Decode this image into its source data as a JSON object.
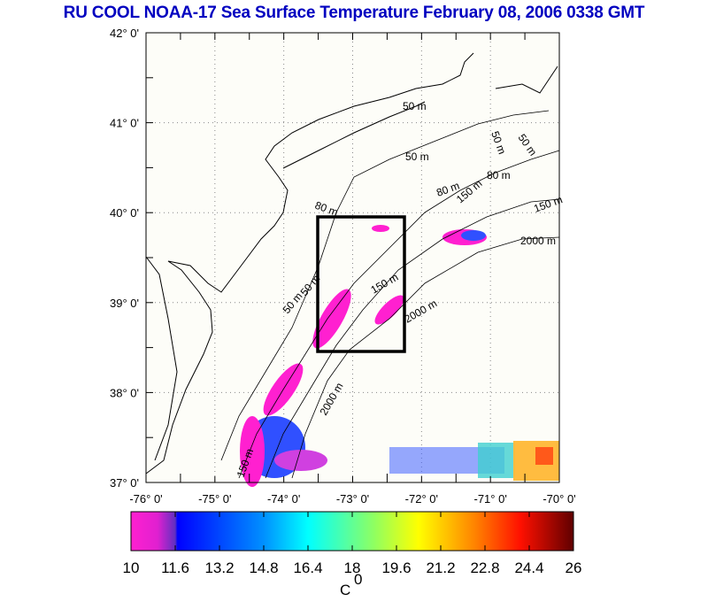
{
  "title": "RU COOL  NOAA-17 Sea Surface Temperature February 08, 2006 0338 GMT",
  "map": {
    "lon_range": [
      -76,
      -70
    ],
    "lat_range": [
      37,
      42
    ],
    "lon_labels": [
      "-76° 0'",
      "-75° 0'",
      "-74° 0'",
      "-73° 0'",
      "-72° 0'",
      "-71° 0'",
      "-70° 0'"
    ],
    "lat_labels": [
      "42° 0'",
      "41° 0'",
      "40° 0'",
      "39° 0'",
      "38° 0'",
      "37° 0'"
    ],
    "study_box": {
      "lon": [
        -73.5,
        -72.25
      ],
      "lat": [
        38.5,
        40
      ]
    },
    "contour_labels": [
      "50 m",
      "50 m",
      "50 m",
      "50 m",
      "50 m",
      "50 m",
      "80 m",
      "80 m",
      "80 m",
      "150 m",
      "150 m",
      "150 m",
      "150 m",
      "2000 m",
      "2000 m",
      "2000 m"
    ]
  },
  "colorbar": {
    "min": 10,
    "max": 26,
    "tick_labels": [
      "10",
      "11.6",
      "13.2",
      "14.8",
      "16.4",
      "18",
      "19.6",
      "21.2",
      "22.8",
      "24.4",
      "26"
    ],
    "unit_label": "C",
    "unit_sup": "0",
    "colors": [
      "#ff20d0",
      "#8030d0",
      "#0000ff",
      "#0080ff",
      "#00ffff",
      "#80ff80",
      "#ffff00",
      "#ff9000",
      "#ff2000",
      "#600000"
    ]
  }
}
